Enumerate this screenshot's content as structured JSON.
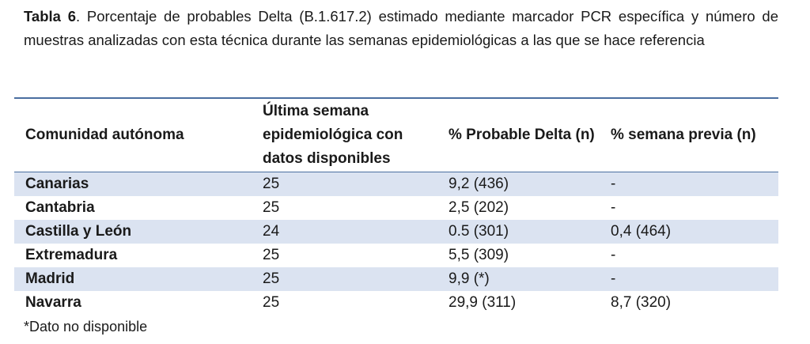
{
  "caption": {
    "label": "Tabla 6",
    "text": ". Porcentaje de probables Delta (B.1.617.2) estimado mediante marcador PCR específica y número de muestras analizadas con esta técnica durante las semanas epidemiológicas a las que se hace referencia"
  },
  "table": {
    "headers": [
      "Comunidad autónoma",
      "Última semana epidemiológica con datos disponibles",
      "% Probable Delta (n)",
      "% semana previa (n)"
    ],
    "rows": [
      [
        "Canarias",
        "25",
        "9,2 (436)",
        "-"
      ],
      [
        "Cantabria",
        "25",
        "2,5 (202)",
        "-"
      ],
      [
        "Castilla y León",
        "24",
        "0.5 (301)",
        "0,4 (464)"
      ],
      [
        "Extremadura",
        "25",
        "5,5 (309)",
        "-"
      ],
      [
        "Madrid",
        "25",
        "9,9 (*)",
        "-"
      ],
      [
        "Navarra",
        "25",
        "29,9 (311)",
        "8,7 (320)"
      ]
    ],
    "shade_color": "#dbe3f1",
    "rule_color": "#4a6ea0"
  },
  "footnote": "*Dato no disponible"
}
